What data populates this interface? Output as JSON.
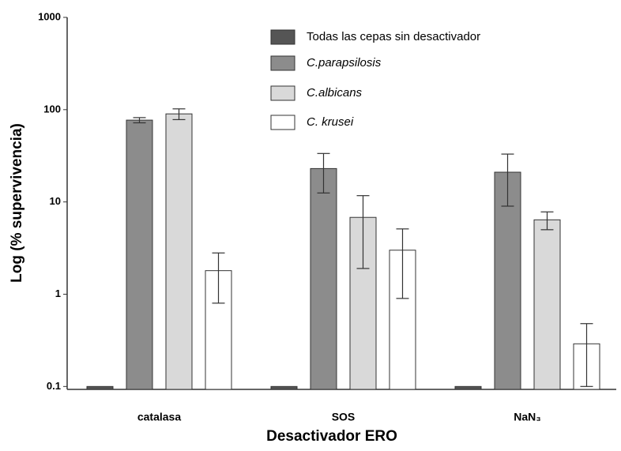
{
  "chart_data": {
    "type": "bar",
    "x_label": "Desactivador ERO",
    "y_label": "Log (% supervivencia)",
    "categories": [
      "catalasa",
      "SOS",
      "NaN₃"
    ],
    "series": [
      {
        "name": "Todas las cepas sin desactivador",
        "color": "#555555",
        "italic": false,
        "values": [
          0.1,
          0.1,
          0.1
        ]
      },
      {
        "name": "C.parapsilosis",
        "color": "#8c8c8c",
        "italic": true,
        "values": [
          77,
          23,
          21
        ],
        "errors": [
          5,
          10.5,
          12
        ]
      },
      {
        "name": "C.albicans",
        "color": "#d9d9d9",
        "italic": true,
        "values": [
          90,
          6.8,
          6.4
        ],
        "errors": [
          12,
          4.9,
          1.4
        ]
      },
      {
        "name": "C. krusei",
        "color": "#ffffff",
        "italic": true,
        "values": [
          1.8,
          3.0,
          0.29
        ],
        "errors": [
          1.0,
          2.1,
          0.19
        ]
      }
    ],
    "log_y": true,
    "ylim": [
      0.093,
      1000
    ],
    "yticks": [
      0.1,
      1,
      10,
      100,
      1000
    ],
    "grid": false
  }
}
